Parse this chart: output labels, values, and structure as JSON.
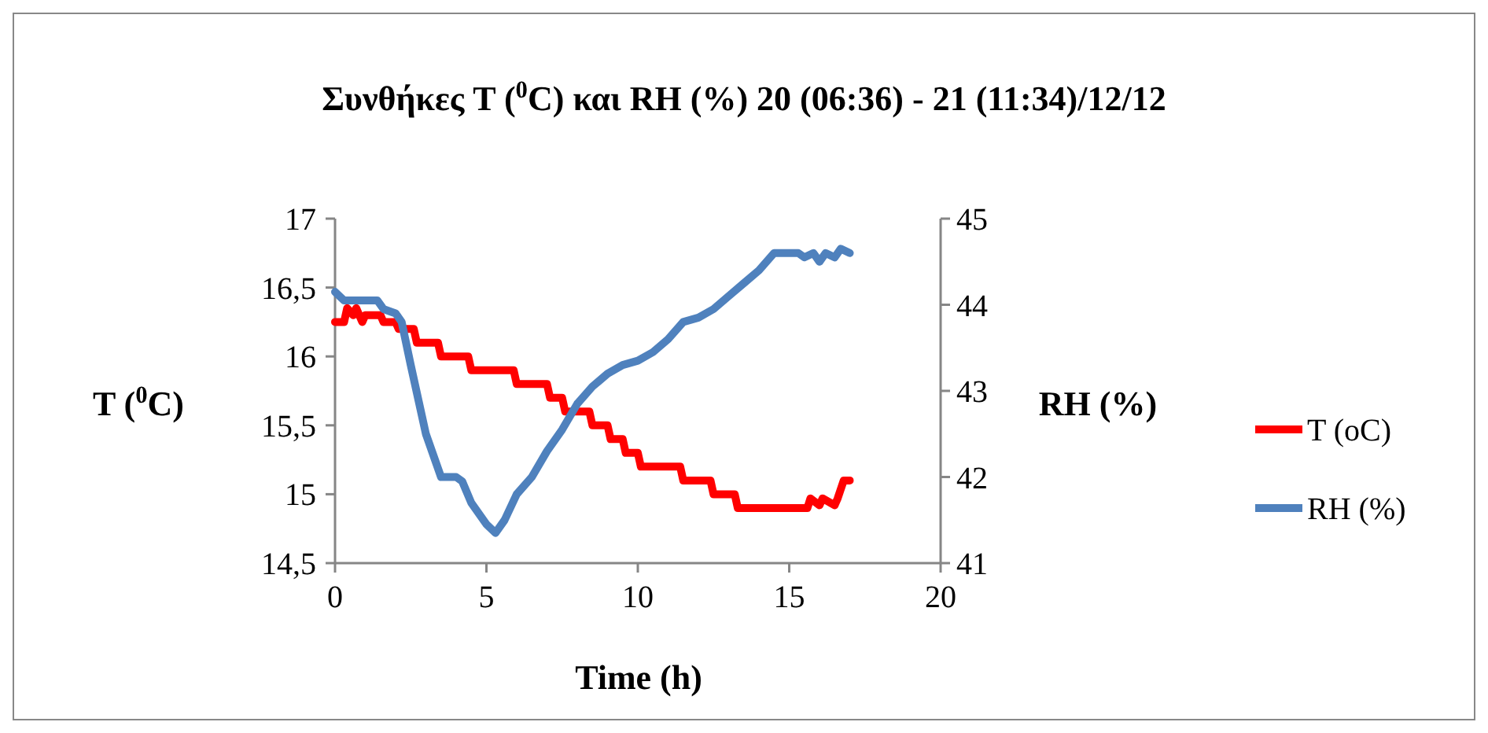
{
  "chart_data": {
    "type": "line",
    "title": "Συνθήκες T ($^{0}$C) και RH (%) 20 (06:36) - 21 (11:34)/12/12",
    "xlabel": "Time (h)",
    "ylabel": "T ($^{0}$C)",
    "y2label": "RH (%)",
    "xlim": [
      0,
      20
    ],
    "xticks": [
      0,
      5,
      10,
      15,
      20
    ],
    "ylim": [
      14.5,
      17
    ],
    "yticks": [
      {
        "value": 14.5,
        "label": "14,5"
      },
      15,
      {
        "value": 15.5,
        "label": "15,5"
      },
      16,
      {
        "value": 16.5,
        "label": "16,5"
      },
      17
    ],
    "y2lim": [
      41,
      45
    ],
    "y2ticks": [
      41,
      42,
      43,
      44,
      45
    ],
    "legend": "right",
    "grid": false,
    "marker": "none",
    "line_style": "solid",
    "series": [
      {
        "name": "T (oC)",
        "color": "#ff0000",
        "x": [
          0,
          0.3,
          0.4,
          0.6,
          0.7,
          0.9,
          1.0,
          1.5,
          1.6,
          2.0,
          2.1,
          2.6,
          2.7,
          3.4,
          3.5,
          4.4,
          4.5,
          5.9,
          6.0,
          7.0,
          7.1,
          7.5,
          7.6,
          8.4,
          8.5,
          9.0,
          9.1,
          9.5,
          9.6,
          10.0,
          10.1,
          11.4,
          11.5,
          12.4,
          12.5,
          13.2,
          13.3,
          15.6,
          15.7,
          16.0,
          16.1,
          16.5,
          16.6,
          16.8,
          17.0
        ],
        "values": [
          16.25,
          16.25,
          16.35,
          16.3,
          16.35,
          16.25,
          16.3,
          16.3,
          16.25,
          16.25,
          16.2,
          16.2,
          16.1,
          16.1,
          16.0,
          16.0,
          15.9,
          15.9,
          15.8,
          15.8,
          15.7,
          15.7,
          15.6,
          15.6,
          15.5,
          15.5,
          15.4,
          15.4,
          15.3,
          15.3,
          15.2,
          15.2,
          15.1,
          15.1,
          15.0,
          15.0,
          14.9,
          14.9,
          14.97,
          14.92,
          14.97,
          14.92,
          14.97,
          15.1,
          15.1
        ]
      },
      {
        "name": "RH (%)",
        "color": "#4f81bd",
        "x": [
          0,
          0.3,
          1.4,
          1.6,
          2.0,
          2.2,
          2.5,
          3.0,
          3.5,
          4.0,
          4.2,
          4.5,
          5.0,
          5.3,
          5.6,
          6.0,
          6.5,
          7.0,
          7.5,
          8.0,
          8.5,
          9.0,
          9.5,
          10.0,
          10.5,
          11.0,
          11.5,
          12.0,
          12.5,
          13.0,
          13.5,
          14.0,
          14.5,
          15.0,
          15.3,
          15.5,
          15.8,
          16.0,
          16.2,
          16.5,
          16.7,
          17.0
        ],
        "values": [
          44.15,
          44.05,
          44.05,
          43.95,
          43.9,
          43.8,
          43.3,
          42.5,
          42.0,
          42.0,
          41.95,
          41.7,
          41.45,
          41.35,
          41.5,
          41.8,
          42.0,
          42.3,
          42.55,
          42.85,
          43.05,
          43.2,
          43.3,
          43.35,
          43.45,
          43.6,
          43.8,
          43.85,
          43.95,
          44.1,
          44.25,
          44.4,
          44.6,
          44.6,
          44.6,
          44.55,
          44.6,
          44.5,
          44.6,
          44.55,
          44.65,
          44.6
        ],
        "axis": "y2"
      }
    ]
  }
}
